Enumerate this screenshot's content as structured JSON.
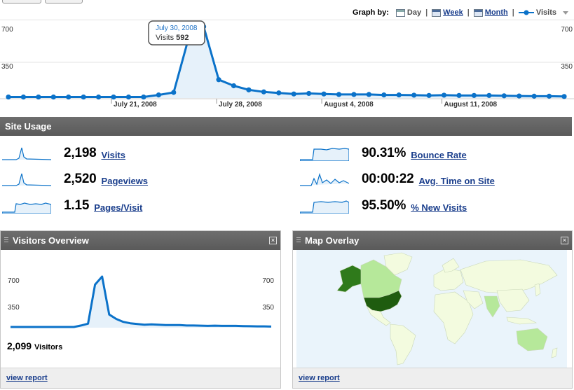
{
  "graph_by": {
    "label": "Graph by:",
    "options": [
      {
        "label": "Day",
        "selected": true
      },
      {
        "label": "Week",
        "selected": false
      },
      {
        "label": "Month",
        "selected": false
      }
    ],
    "metric": "Visits"
  },
  "chart_data": [
    {
      "type": "area",
      "ylim": [
        0,
        700
      ],
      "y_ticks": [
        "700",
        "350"
      ],
      "x_labels": [
        "July 21, 2008",
        "July 28, 2008",
        "August 4, 2008",
        "August 11, 2008"
      ],
      "tooltip": {
        "date": "July 30, 2008",
        "metric": "Visits",
        "value": "592"
      },
      "series": [
        {
          "values": [
            10,
            10,
            10,
            10,
            10,
            10,
            10,
            10,
            10,
            10,
            30,
            55,
            590,
            700,
            180,
            120,
            80,
            60,
            50,
            40,
            45,
            40,
            35,
            35,
            35,
            30,
            30,
            28,
            25,
            28,
            25,
            25,
            25,
            22,
            20,
            18,
            18,
            15
          ]
        }
      ]
    },
    {
      "type": "area",
      "ylim": [
        0,
        700
      ],
      "y_ticks": [
        "700",
        "350"
      ],
      "series": [
        {
          "values": [
            10,
            10,
            10,
            10,
            10,
            10,
            10,
            10,
            10,
            10,
            30,
            55,
            590,
            700,
            180,
            120,
            80,
            60,
            50,
            40,
            45,
            40,
            35,
            35,
            35,
            30,
            30,
            28,
            25,
            28,
            25,
            25,
            25,
            22,
            20,
            18,
            18,
            15
          ]
        }
      ]
    }
  ],
  "site_usage": {
    "title": "Site Usage",
    "metrics": [
      {
        "value": "2,198",
        "label": "Visits"
      },
      {
        "value": "2,520",
        "label": "Pageviews"
      },
      {
        "value": "1.15",
        "label": "Pages/Visit"
      },
      {
        "value": "90.31%",
        "label": "Bounce Rate"
      },
      {
        "value": "00:00:22",
        "label": "Avg. Time on Site"
      },
      {
        "value": "95.50%",
        "label": "% New Visits"
      }
    ]
  },
  "visitors_overview": {
    "title": "Visitors Overview",
    "count": "2,099",
    "count_label": "Visitors",
    "footer": "view report"
  },
  "map_overlay": {
    "title": "Map Overlay",
    "footer": "view report"
  },
  "colors": {
    "line": "#0b72c9",
    "fill": "#e6f1fa",
    "header": "#626262",
    "map_ocean": "#eaf4fb",
    "map_land": "#f3fbdf",
    "map_mid": "#b6e89a",
    "map_dark": "#2f7a1b",
    "map_darkest": "#1f5c0f"
  }
}
